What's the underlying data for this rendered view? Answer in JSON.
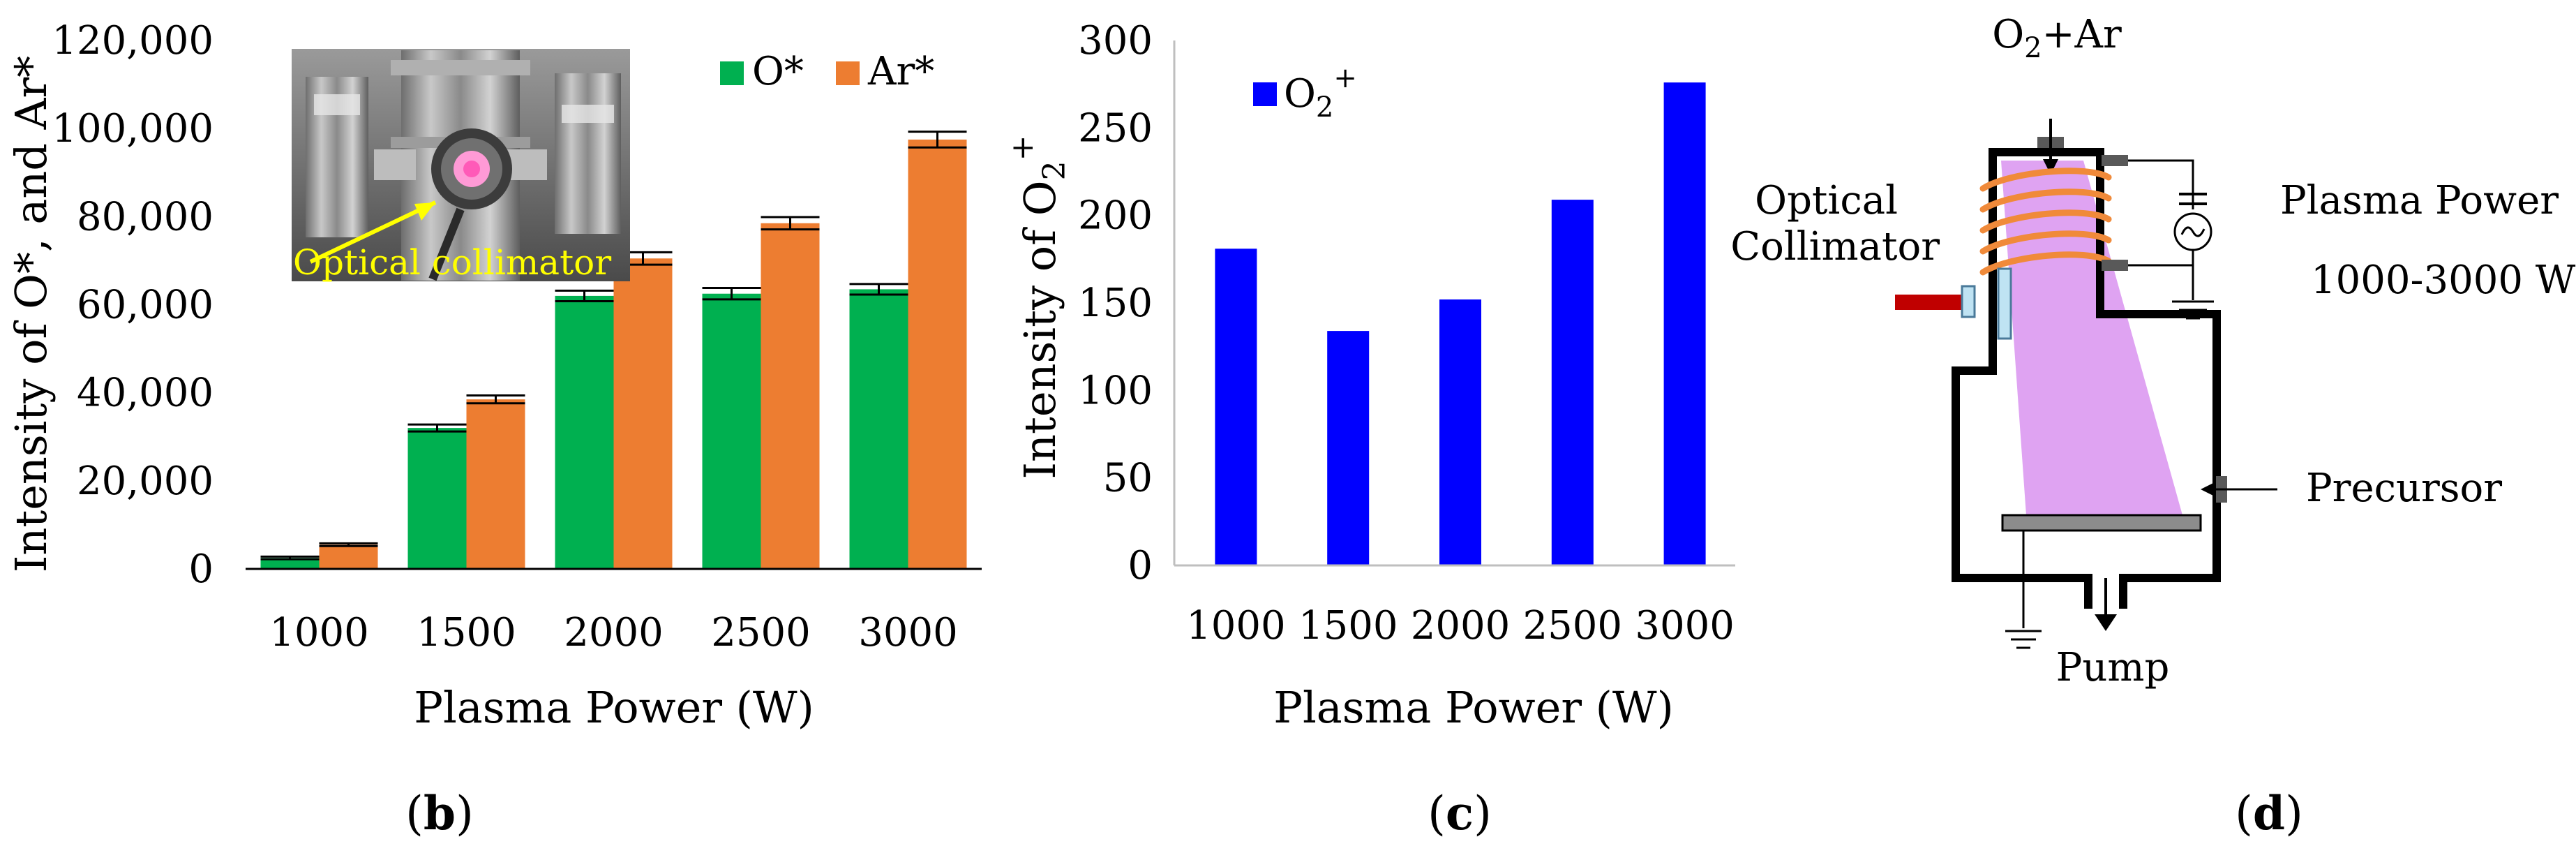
{
  "colors": {
    "oxygen_atomic": "#00b050",
    "argon": "#ed7d31",
    "oxygen_ion": "#0000ff",
    "plasma": "#dfa3f2",
    "coil": "#f08a3a",
    "collimator_rod": "#c00000",
    "collimator_head": "#bfe3f3",
    "substrate": "#8c8c8c"
  },
  "panels": {
    "b": {
      "label_open": "(",
      "label_letter": "b",
      "label_close": ")"
    },
    "c": {
      "label_open": "(",
      "label_letter": "c",
      "label_close": ")"
    },
    "d": {
      "label_open": "(",
      "label_letter": "d",
      "label_close": ")"
    }
  },
  "inset": {
    "caption": "Optical collimator",
    "icon": "chamber-photo-icon"
  },
  "chart_data": [
    {
      "id": "b",
      "type": "bar",
      "title": "",
      "categories": [
        "1000",
        "1500",
        "2000",
        "2500",
        "3000"
      ],
      "series": [
        {
          "name": "O*",
          "color_key": "oxygen_atomic",
          "values": [
            2500,
            32000,
            62000,
            62500,
            63500
          ],
          "errors": [
            300,
            800,
            1200,
            1300,
            1200
          ]
        },
        {
          "name": "Ar*",
          "color_key": "argon",
          "values": [
            5500,
            38500,
            70500,
            78500,
            97500
          ],
          "errors": [
            300,
            900,
            1400,
            1400,
            1800
          ]
        }
      ],
      "xlabel": "Plasma Power (W)",
      "ylabel_parts": [
        "Intensity of O*, and Ar*"
      ],
      "ylim": [
        0,
        120000
      ],
      "yticks": [
        0,
        20000,
        40000,
        60000,
        80000,
        100000,
        120000
      ],
      "ytick_labels": [
        "0",
        "20,000",
        "40,000",
        "60,000",
        "80,000",
        "100,000",
        "120,000"
      ],
      "legend": "top-right",
      "grid": false
    },
    {
      "id": "c",
      "type": "bar",
      "title": "",
      "categories": [
        "1000",
        "1500",
        "2000",
        "2500",
        "3000"
      ],
      "series": [
        {
          "name": "O2+",
          "name_base": "O",
          "name_sub": "2",
          "name_sup": "+",
          "color_key": "oxygen_ion",
          "values": [
            181,
            134,
            152,
            209,
            276
          ]
        }
      ],
      "xlabel": "Plasma Power (W)",
      "ylabel_base": "Intensity of O",
      "ylabel_sub": "2",
      "ylabel_sup": "+",
      "ylim": [
        0,
        300
      ],
      "yticks": [
        0,
        50,
        100,
        150,
        200,
        250,
        300
      ],
      "ytick_labels": [
        "0",
        "50",
        "100",
        "150",
        "200",
        "250",
        "300"
      ],
      "legend": "top-left",
      "grid": false
    }
  ],
  "schematic": {
    "gas_in_base": "O",
    "gas_in_sub": "2",
    "gas_in_rest": "+Ar",
    "collimator_line1": "Optical",
    "collimator_line2": "Collimator",
    "power_label": "Plasma Power",
    "power_range": "1000-3000 W",
    "precursor": "Precursor",
    "pump": "Pump"
  }
}
